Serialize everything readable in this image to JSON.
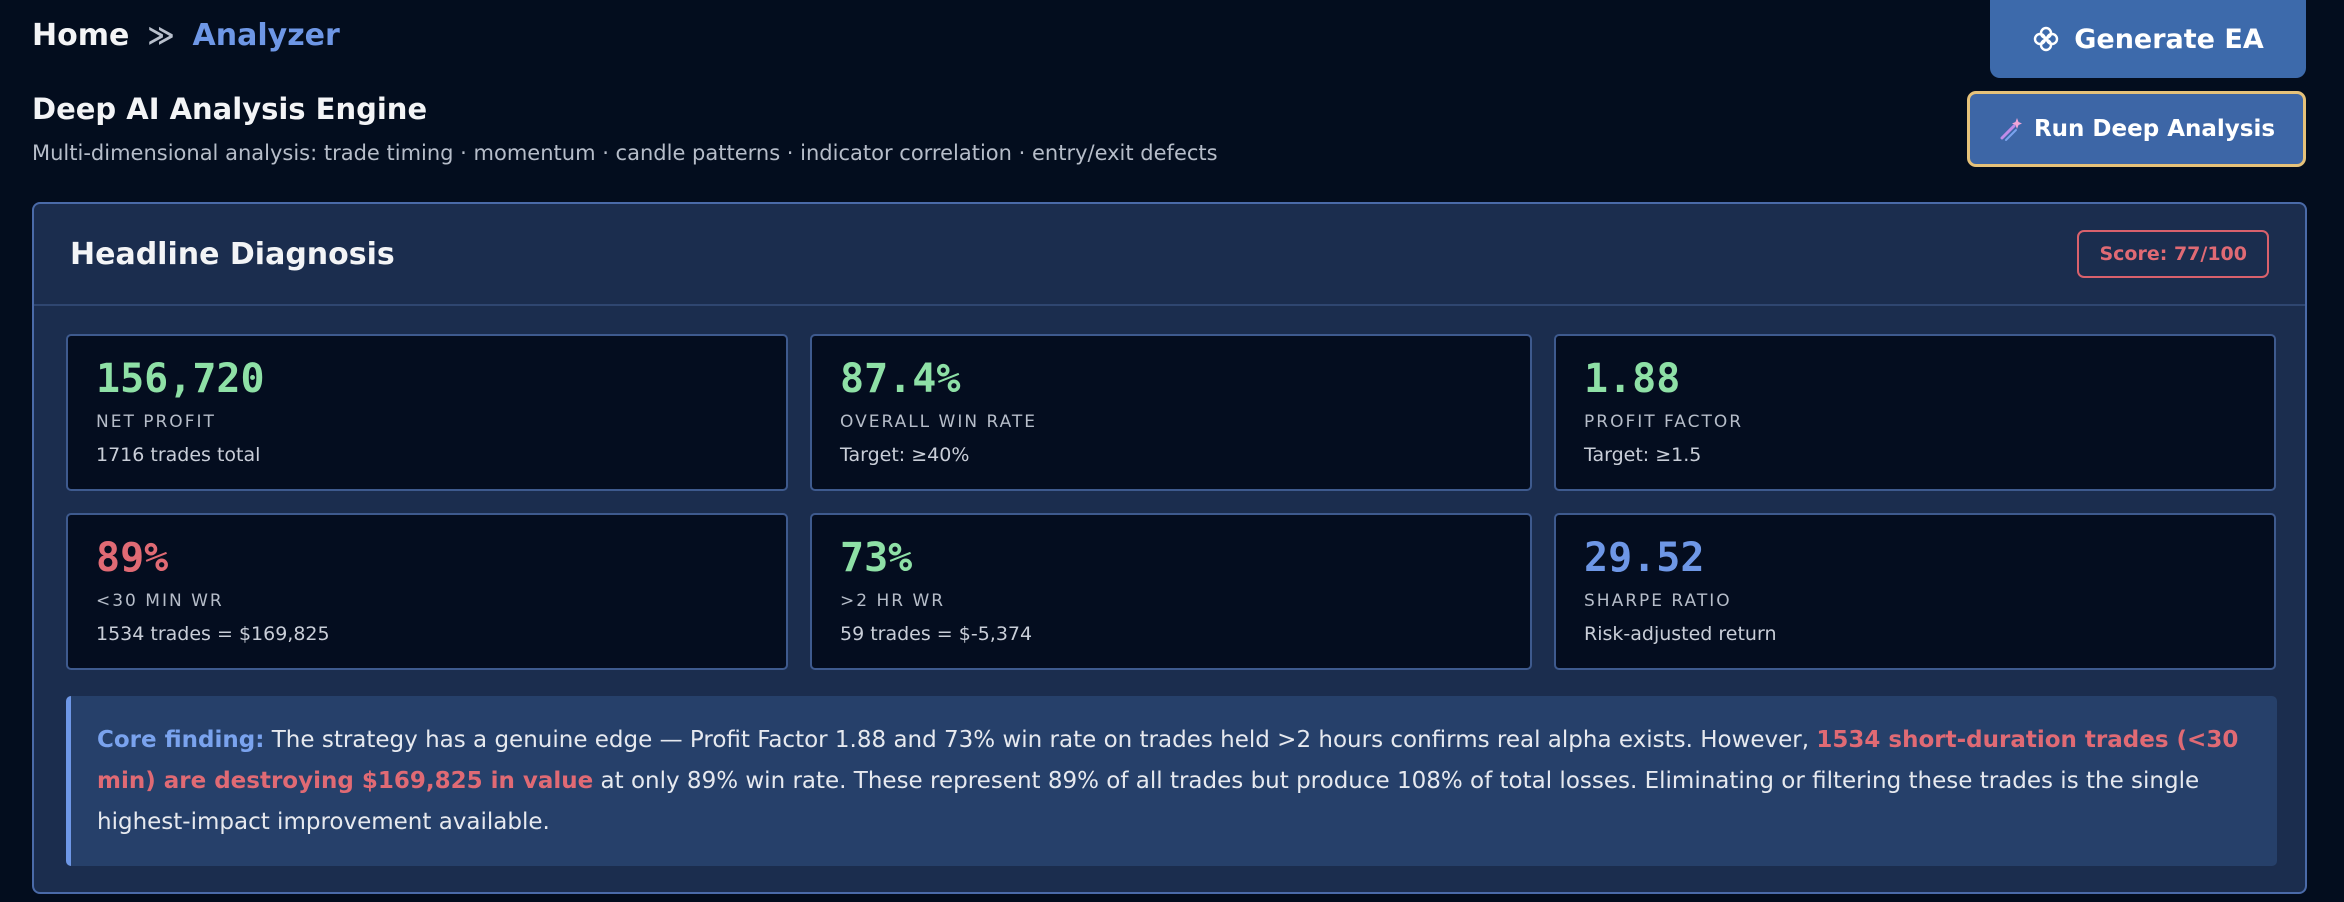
{
  "breadcrumb": {
    "home": "Home",
    "separator": "≫",
    "current": "Analyzer"
  },
  "actions": {
    "generate_label": "Generate EA",
    "run_label": "Run Deep Analysis"
  },
  "header": {
    "title": "Deep AI Analysis Engine",
    "subtitle": "Multi-dimensional analysis: trade timing · momentum · candle patterns · indicator correlation · entry/exit defects"
  },
  "diagnosis": {
    "title": "Headline Diagnosis",
    "score": "Score: 77/100",
    "metrics": [
      {
        "value": "156,720",
        "label": "NET PROFIT",
        "note": "1716 trades total",
        "color": "#8ee0a6"
      },
      {
        "value": "87.4%",
        "label": "OVERALL WIN RATE",
        "note": "Target: ≥40%",
        "color": "#8ee0a6"
      },
      {
        "value": "1.88",
        "label": "PROFIT FACTOR",
        "note": "Target: ≥1.5",
        "color": "#8ee0a6"
      },
      {
        "value": "89%",
        "label": "<30 MIN WR",
        "note": "1534 trades = $169,825",
        "color": "#e06a74"
      },
      {
        "value": "73%",
        "label": ">2 HR WR",
        "note": "59 trades = $-5,374",
        "color": "#8ee0a6"
      },
      {
        "value": "29.52",
        "label": "SHARPE RATIO",
        "note": "Risk-adjusted return",
        "color": "#6e97e6"
      }
    ],
    "finding": {
      "lead": "Core finding:",
      "text1": " The strategy has a genuine edge — Profit Factor 1.88 and 73% win rate on trades held >2 hours confirms real alpha exists. However, ",
      "alert": "1534 short-duration trades (<30 min) are destroying $169,825 in value",
      "text2": " at only 89% win rate. These represent 89% of all trades but produce 108% of total losses. Eliminating or filtering these trades is the single highest-impact improvement available."
    }
  },
  "colors": {
    "background": "#030d1e",
    "accent": "#6e97e6",
    "positive": "#8ee0a6",
    "negative": "#e06a74",
    "button_border": "#e6c27a"
  },
  "icons": {
    "generate": "flower-icon",
    "run": "sparkle-icon"
  }
}
